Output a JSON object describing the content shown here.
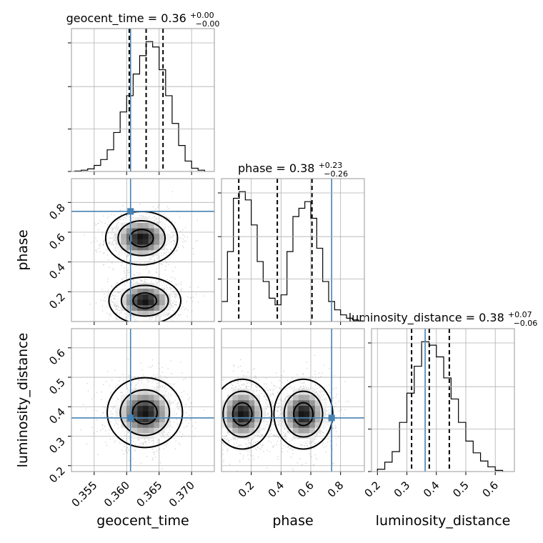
{
  "chart_data": {
    "type": "corner",
    "parameters": [
      "geocent_time",
      "phase",
      "luminosity_distance"
    ],
    "panel_titles": [
      {
        "param": "geocent_time",
        "name": "geocent_time",
        "median": "0.36",
        "plus": "+0.00",
        "minus": "−0.00"
      },
      {
        "param": "phase",
        "name": "phase",
        "median": "0.38",
        "plus": "+0.23",
        "minus": "−0.26"
      },
      {
        "param": "luminosity_distance",
        "name": "luminosity_distance",
        "median": "0.38",
        "plus": "+0.07",
        "minus": "−0.06"
      }
    ],
    "axis_labels": {
      "x": [
        "geocent_time",
        "phase",
        "luminosity_distance"
      ],
      "y": [
        "phase",
        "luminosity_distance"
      ]
    },
    "ranges": {
      "geocent_time": [
        0.3515,
        0.3735
      ],
      "phase": [
        0.0,
        0.96
      ],
      "luminosity_distance": [
        0.18,
        0.665
      ]
    },
    "ticks": {
      "geocent_time": {
        "values": [
          0.355,
          0.36,
          0.365,
          0.37
        ],
        "labels": [
          "0.355",
          "0.360",
          "0.365",
          "0.370"
        ]
      },
      "phase": {
        "values": [
          0.2,
          0.4,
          0.6,
          0.8
        ],
        "labels": [
          "0.2",
          "0.4",
          "0.6",
          "0.8"
        ]
      },
      "luminosity_distance": {
        "values": [
          0.2,
          0.3,
          0.4,
          0.5,
          0.6
        ],
        "labels": [
          "0.2",
          "0.3",
          "0.4",
          "0.5",
          "0.6"
        ]
      }
    },
    "truths": {
      "geocent_time": 0.3606,
      "phase": 0.74,
      "luminosity_distance": 0.362
    },
    "quantiles": {
      "geocent_time": [
        0.3604,
        0.363,
        0.3656
      ],
      "phase": [
        0.116,
        0.375,
        0.608
      ],
      "luminosity_distance": [
        0.316,
        0.376,
        0.444
      ]
    },
    "histograms": {
      "geocent_time": {
        "edges": [
          0.352,
          0.353,
          0.354,
          0.355,
          0.356,
          0.357,
          0.358,
          0.359,
          0.36,
          0.361,
          0.362,
          0.363,
          0.364,
          0.365,
          0.366,
          0.367,
          0.368,
          0.369,
          0.37,
          0.371,
          0.372
        ],
        "counts": [
          2,
          6,
          12,
          28,
          55,
          100,
          180,
          275,
          350,
          450,
          535,
          600,
          575,
          470,
          350,
          222,
          120,
          48,
          15,
          6
        ]
      },
      "phase": {
        "edges": [
          0.0,
          0.04,
          0.08,
          0.12,
          0.16,
          0.2,
          0.24,
          0.28,
          0.32,
          0.36,
          0.4,
          0.44,
          0.48,
          0.52,
          0.56,
          0.6,
          0.64,
          0.68,
          0.72,
          0.76,
          0.8,
          0.84,
          0.88,
          0.92,
          0.96
        ],
        "counts": [
          60,
          210,
          370,
          390,
          365,
          290,
          180,
          120,
          70,
          50,
          80,
          210,
          315,
          340,
          360,
          310,
          220,
          120,
          60,
          35,
          20,
          10,
          5,
          2
        ]
      },
      "luminosity_distance": {
        "edges": [
          0.2,
          0.225,
          0.25,
          0.275,
          0.3,
          0.325,
          0.35,
          0.375,
          0.4,
          0.425,
          0.45,
          0.475,
          0.5,
          0.525,
          0.55,
          0.575,
          0.6,
          0.625
        ],
        "counts": [
          10,
          40,
          85,
          210,
          335,
          450,
          555,
          540,
          490,
          400,
          310,
          210,
          130,
          80,
          45,
          20,
          5
        ]
      }
    },
    "density_blobs": {
      "phase_vs_geocent_time": [
        {
          "x": 0.3623,
          "y": 0.56,
          "sx": 0.0021,
          "sy": 0.068,
          "w": 1.0
        },
        {
          "x": 0.3628,
          "y": 0.14,
          "sx": 0.0021,
          "sy": 0.06,
          "w": 1.0
        }
      ],
      "luminosity_distance_vs_geocent_time": [
        {
          "x": 0.3628,
          "y": 0.38,
          "sx": 0.0022,
          "sy": 0.045,
          "w": 1.0
        }
      ],
      "luminosity_distance_vs_phase": [
        {
          "x": 0.14,
          "y": 0.375,
          "sx": 0.075,
          "sy": 0.045,
          "w": 1.0
        },
        {
          "x": 0.55,
          "y": 0.375,
          "sx": 0.075,
          "sy": 0.045,
          "w": 1.0
        }
      ]
    },
    "contour_levels": [
      0.39,
      0.86,
      0.99
    ],
    "colors": {
      "truth": "#4682b4",
      "lines": "#000000",
      "frame": "#9a9a9a",
      "grid": "#b0b0b0"
    },
    "grid": true
  }
}
